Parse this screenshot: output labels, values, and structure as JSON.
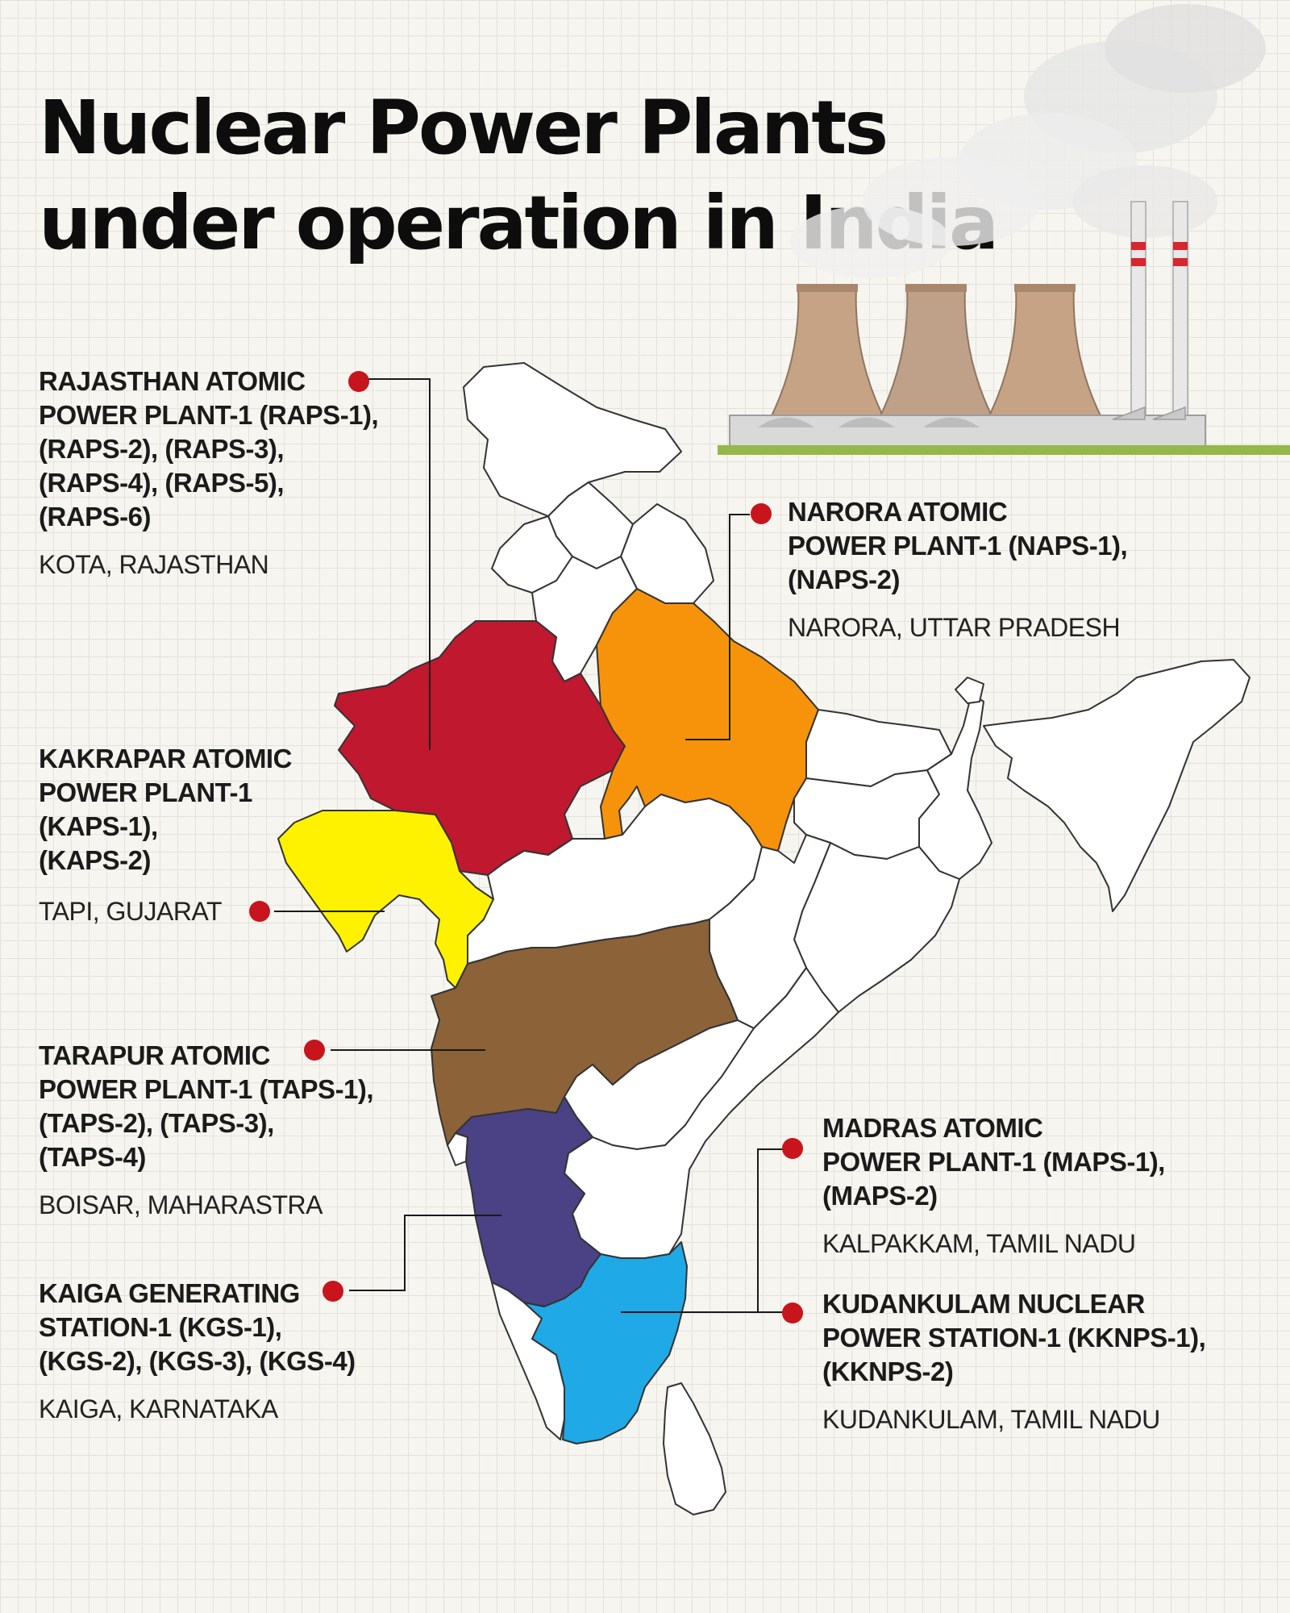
{
  "title": {
    "line1": "Nuclear Power Plants",
    "line2": "under operation in India"
  },
  "colors": {
    "rajasthan": "#c0182f",
    "uttar_pradesh": "#f7930a",
    "gujarat": "#fff200",
    "maharashtra": "#8c6239",
    "karnataka": "#4a4284",
    "tamil_nadu": "#1fa9e6",
    "marker": "#c8141c",
    "other_states": "#ffffff"
  },
  "plants": [
    {
      "id": "raps",
      "state": "rajasthan",
      "name_lines": [
        "RAJASTHAN ATOMIC",
        "POWER PLANT-1 (RAPS-1),",
        "(RAPS-2), (RAPS-3),",
        "(RAPS-4),  (RAPS-5),",
        "(RAPS-6)"
      ],
      "location": "KOTA, RAJASTHAN"
    },
    {
      "id": "naps",
      "state": "uttar_pradesh",
      "name_lines": [
        "NARORA ATOMIC",
        "POWER PLANT-1 (NAPS-1),",
        "(NAPS-2)"
      ],
      "location": "NARORA, UTTAR PRADESH"
    },
    {
      "id": "kaps",
      "state": "gujarat",
      "name_lines": [
        "KAKRAPAR ATOMIC",
        "POWER PLANT-1",
        "(KAPS-1),",
        "(KAPS-2)"
      ],
      "location": "TAPI, GUJARAT"
    },
    {
      "id": "taps",
      "state": "maharashtra",
      "name_lines": [
        "TARAPUR ATOMIC",
        "POWER PLANT-1 (TAPS-1),",
        "(TAPS-2), (TAPS-3),",
        "(TAPS-4)"
      ],
      "location": "BOISAR, MAHARASTRA"
    },
    {
      "id": "kgs",
      "state": "karnataka",
      "name_lines": [
        "KAIGA GENERATING",
        "STATION-1 (KGS-1),",
        "(KGS-2), (KGS-3), (KGS-4)"
      ],
      "location": "KAIGA, KARNATAKA"
    },
    {
      "id": "maps",
      "state": "tamil_nadu",
      "name_lines": [
        "MADRAS ATOMIC",
        "POWER PLANT-1 (MAPS-1),",
        "(MAPS-2)"
      ],
      "location": "KALPAKKAM, TAMIL NADU"
    },
    {
      "id": "kknps",
      "state": "tamil_nadu",
      "name_lines": [
        "KUDANKULAM NUCLEAR",
        "POWER STATION-1 (KKNPS-1),",
        "(KKNPS-2)"
      ],
      "location": "KUDANKULAM, TAMIL NADU"
    }
  ]
}
